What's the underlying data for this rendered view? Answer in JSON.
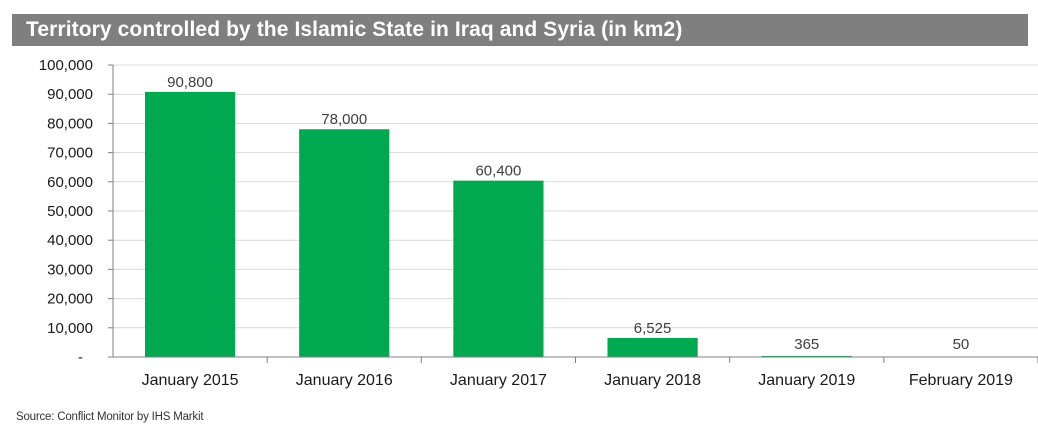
{
  "chart_data": {
    "type": "bar",
    "title": "Territory controlled by the Islamic State in Iraq and Syria (in km2)",
    "categories": [
      "January 2015",
      "January 2016",
      "January 2017",
      "January 2018",
      "January 2019",
      "February 2019"
    ],
    "values": [
      90800,
      78000,
      60400,
      6525,
      365,
      50
    ],
    "data_labels": [
      "90,800",
      "78,000",
      "60,400",
      "6,525",
      "365",
      "50"
    ],
    "ylim": [
      0,
      100000
    ],
    "yticks": [
      0,
      10000,
      20000,
      30000,
      40000,
      50000,
      60000,
      70000,
      80000,
      90000,
      100000
    ],
    "ytick_labels": [
      "-",
      "10,000",
      "20,000",
      "30,000",
      "40,000",
      "50,000",
      "60,000",
      "70,000",
      "80,000",
      "90,000",
      "100,000"
    ],
    "xlabel": "",
    "ylabel": "",
    "grid": true,
    "legend": "none",
    "bar_color": "#00a94f",
    "grid_color": "#d9d9d9",
    "title_bar_color": "#7f7f7f",
    "source": "Source: Conflict Monitor by IHS Markit"
  }
}
